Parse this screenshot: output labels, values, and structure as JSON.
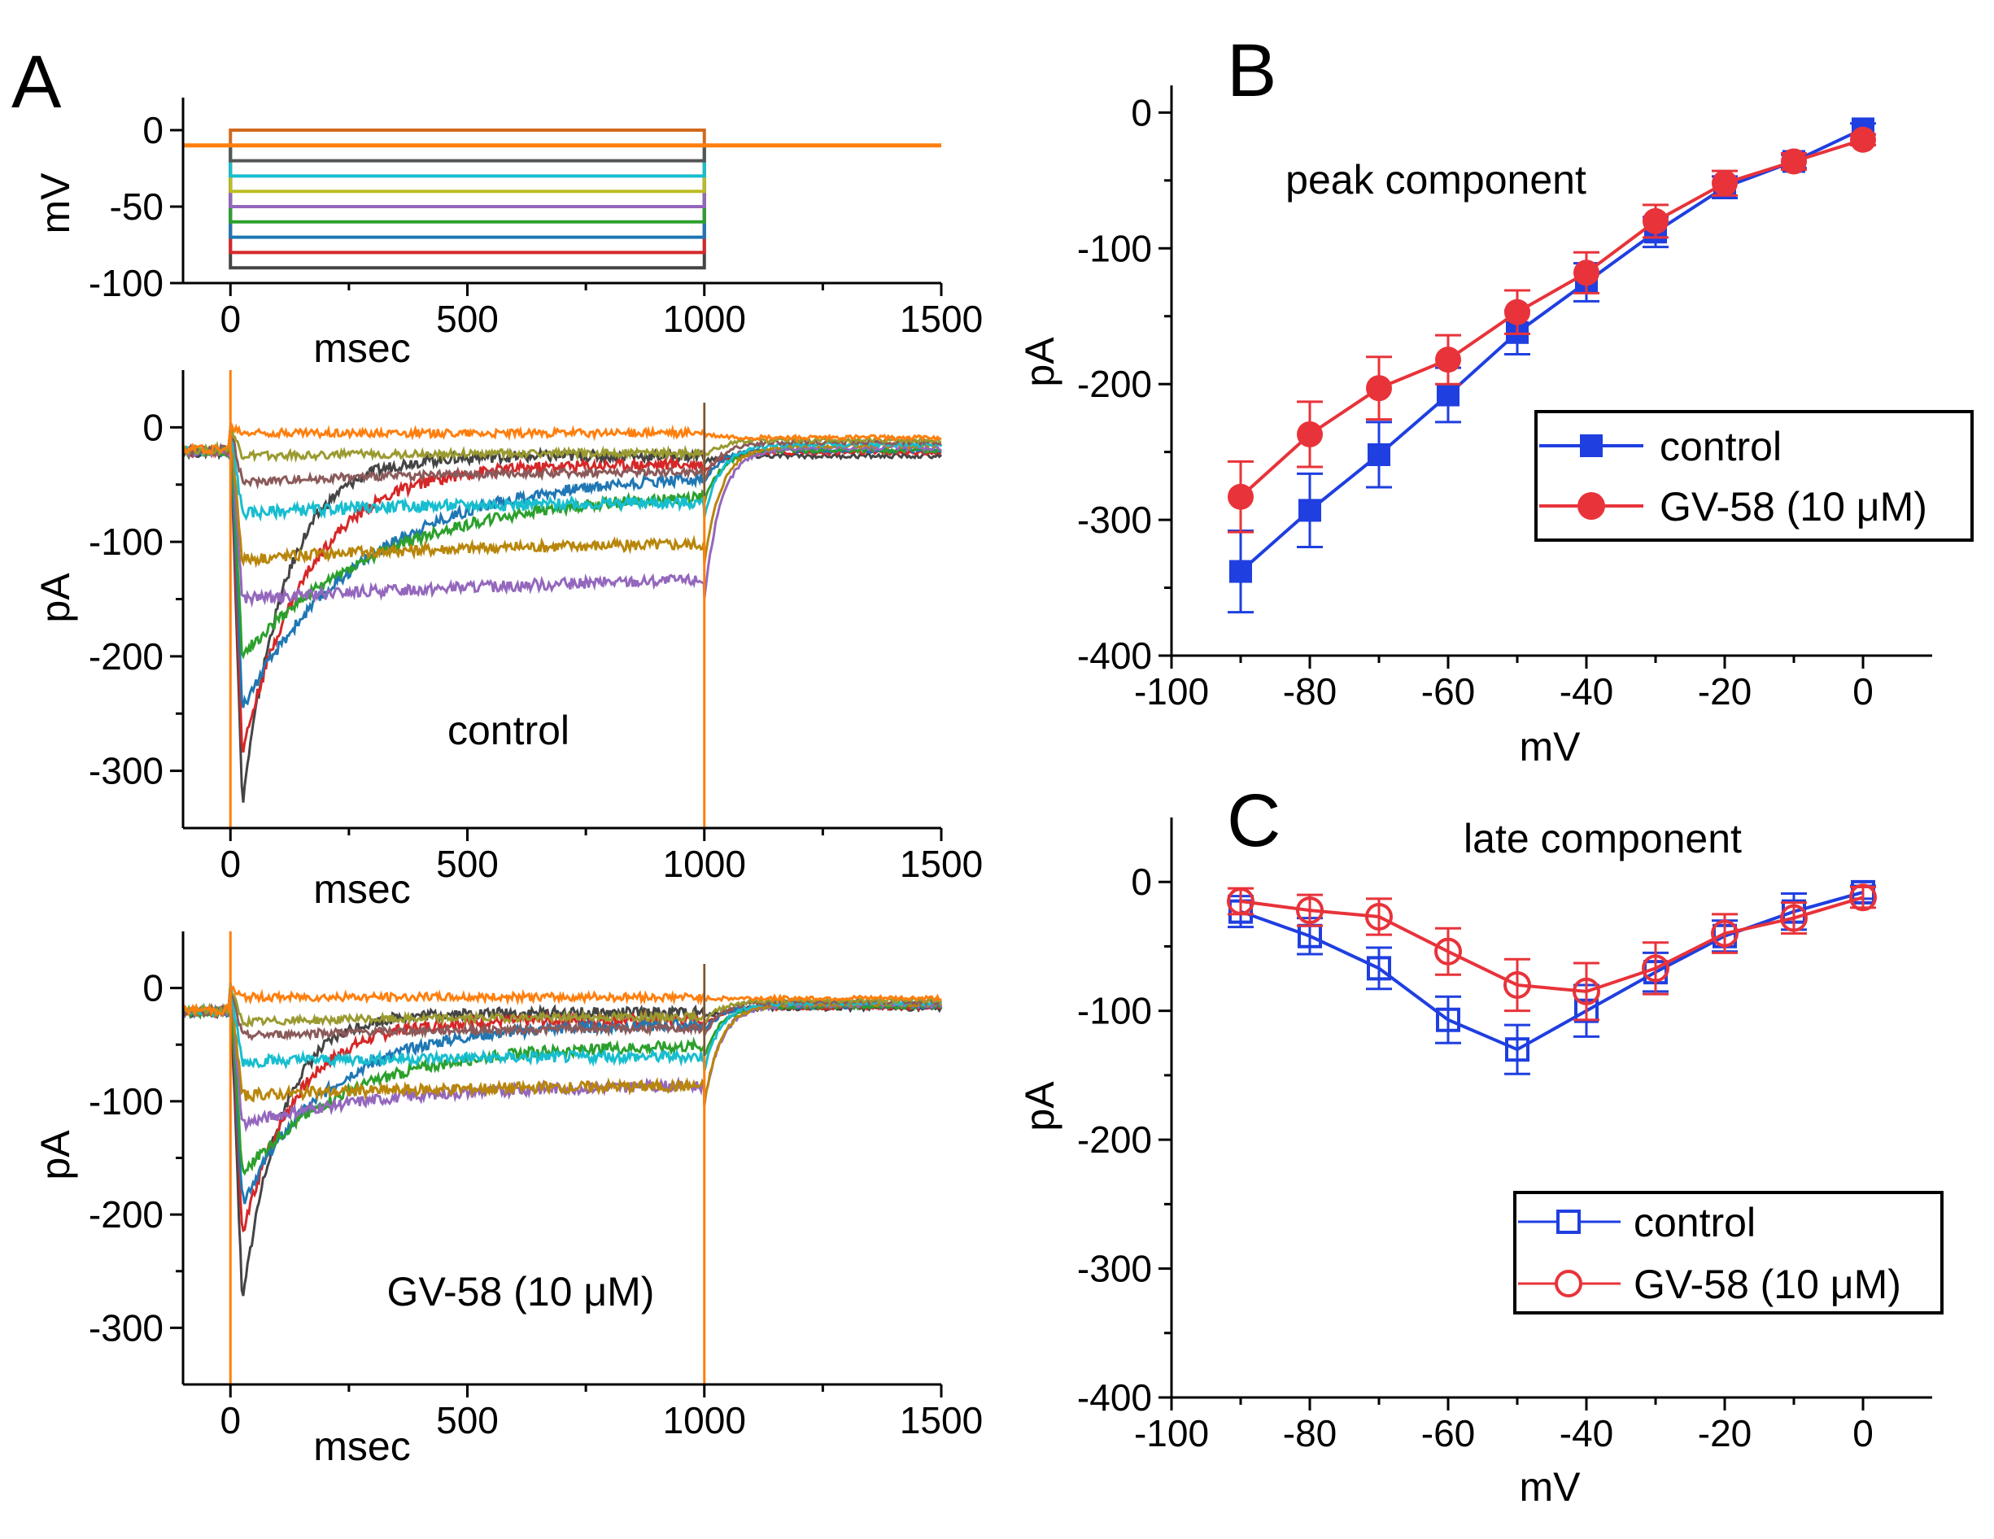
{
  "chart_data": [
    {
      "id": "A1",
      "panel_letter": "A",
      "type": "line",
      "title": "",
      "xlabel": "msec",
      "ylabel": "mV",
      "xlim": [
        -100,
        1500
      ],
      "ylim": [
        -100,
        10
      ],
      "xticks": [
        "0",
        "500",
        "1000",
        "1500"
      ],
      "yticks": [
        "0",
        "-50",
        "-100"
      ],
      "holding_potential": -10,
      "step_start": 0,
      "step_end": 1000,
      "steps": [
        {
          "level": 0,
          "color": "#d2691e"
        },
        {
          "level": -10,
          "color": "#ff7f0e"
        },
        {
          "level": -20,
          "color": "#555555"
        },
        {
          "level": -30,
          "color": "#17becf"
        },
        {
          "level": -40,
          "color": "#bcbd22"
        },
        {
          "level": -50,
          "color": "#9467bd"
        },
        {
          "level": -60,
          "color": "#2ca02c"
        },
        {
          "level": -70,
          "color": "#1f77b4"
        },
        {
          "level": -80,
          "color": "#d62728"
        },
        {
          "level": -90,
          "color": "#444444"
        }
      ]
    },
    {
      "id": "A2",
      "type": "line",
      "title": "",
      "annotation": "control",
      "xlabel": "msec",
      "ylabel": "pA",
      "xlim": [
        -100,
        1500
      ],
      "ylim": [
        -350,
        50
      ],
      "xticks": [
        "0",
        "500",
        "1000",
        "1500"
      ],
      "yticks": [
        "0",
        "-100",
        "-200",
        "-300"
      ],
      "series": [
        {
          "name": "-90 mV",
          "color": "#444444",
          "peak": -330,
          "sustained": -25,
          "tau": 90,
          "tail": -25
        },
        {
          "name": "-80 mV",
          "color": "#d62728",
          "peak": -285,
          "sustained": -32,
          "tau": 140,
          "tail": -22
        },
        {
          "name": "-70 mV",
          "color": "#1f77b4",
          "peak": -245,
          "sustained": -40,
          "tau": 260,
          "tail": -20
        },
        {
          "name": "-60 mV",
          "color": "#2ca02c",
          "peak": -200,
          "sustained": -55,
          "tau": 300,
          "tail": -20
        },
        {
          "name": "-50 mV",
          "color": "#9467bd",
          "peak": -150,
          "sustained": -125,
          "tau": 900,
          "tail": -18
        },
        {
          "name": "-40 mV",
          "color": "#b8860b",
          "peak": -115,
          "sustained": -100,
          "tau": 500,
          "tail": -16
        },
        {
          "name": "-30 mV",
          "color": "#17becf",
          "peak": -75,
          "sustained": -65,
          "tau": 400,
          "tail": -15
        },
        {
          "name": "-20 mV",
          "color": "#8b5a5a",
          "peak": -48,
          "sustained": -38,
          "tau": 400,
          "tail": -13
        },
        {
          "name": "-10 mV",
          "color": "#9a9a30",
          "peak": -25,
          "sustained": -22,
          "tau": 400,
          "tail": -11
        },
        {
          "name": "0 mV",
          "color": "#ff7f0e",
          "peak": -5,
          "sustained": -5,
          "tau": 400,
          "tail": -9
        }
      ]
    },
    {
      "id": "A3",
      "type": "line",
      "title": "",
      "annotation": "GV-58 (10 μM)",
      "xlabel": "msec",
      "ylabel": "pA",
      "xlim": [
        -100,
        1500
      ],
      "ylim": [
        -350,
        50
      ],
      "xticks": [
        "0",
        "500",
        "1000",
        "1500"
      ],
      "yticks": [
        "0",
        "-100",
        "-200",
        "-300"
      ],
      "series": [
        {
          "name": "-90 mV",
          "color": "#444444",
          "peak": -280,
          "sustained": -22,
          "tau": 80,
          "tail": -18
        },
        {
          "name": "-80 mV",
          "color": "#d62728",
          "peak": -220,
          "sustained": -28,
          "tau": 110,
          "tail": -17
        },
        {
          "name": "-70 mV",
          "color": "#1f77b4",
          "peak": -190,
          "sustained": -32,
          "tau": 180,
          "tail": -16
        },
        {
          "name": "-60 mV",
          "color": "#2ca02c",
          "peak": -165,
          "sustained": -50,
          "tau": 220,
          "tail": -16
        },
        {
          "name": "-50 mV",
          "color": "#9467bd",
          "peak": -120,
          "sustained": -85,
          "tau": 300,
          "tail": -15
        },
        {
          "name": "-40 mV",
          "color": "#b8860b",
          "peak": -95,
          "sustained": -85,
          "tau": 500,
          "tail": -14
        },
        {
          "name": "-30 mV",
          "color": "#17becf",
          "peak": -65,
          "sustained": -60,
          "tau": 400,
          "tail": -13
        },
        {
          "name": "-20 mV",
          "color": "#8b5a5a",
          "peak": -42,
          "sustained": -35,
          "tau": 400,
          "tail": -12
        },
        {
          "name": "-10 mV",
          "color": "#9a9a30",
          "peak": -30,
          "sustained": -25,
          "tau": 400,
          "tail": -11
        },
        {
          "name": "0 mV",
          "color": "#ff7f0e",
          "peak": -8,
          "sustained": -8,
          "tau": 400,
          "tail": -9
        }
      ]
    },
    {
      "id": "B",
      "panel_letter": "B",
      "type": "line",
      "title": "peak component",
      "xlabel": "mV",
      "ylabel": "pA",
      "xlim": [
        -100,
        10
      ],
      "ylim": [
        -400,
        20
      ],
      "xticks": [
        "-100",
        "-80",
        "-60",
        "-40",
        "-20",
        "0"
      ],
      "yticks": [
        "0",
        "-100",
        "-200",
        "-300",
        "-400"
      ],
      "x": [
        -90,
        -80,
        -70,
        -60,
        -50,
        -40,
        -30,
        -20,
        -10,
        0
      ],
      "legend_position": "middle-right",
      "series": [
        {
          "name": "control",
          "color": "#1f3fe0",
          "marker": "filled-square",
          "values": [
            -338,
            -293,
            -252,
            -208,
            -162,
            -125,
            -88,
            -55,
            -36,
            -12
          ],
          "errors": [
            30,
            27,
            24,
            20,
            16,
            14,
            11,
            8,
            5,
            4
          ]
        },
        {
          "name": "GV-58 (10 μM)",
          "color": "#e8333a",
          "marker": "filled-circle",
          "values": [
            -283,
            -237,
            -203,
            -182,
            -147,
            -118,
            -80,
            -52,
            -36,
            -20
          ],
          "errors": [
            26,
            24,
            23,
            18,
            16,
            15,
            12,
            9,
            6,
            4
          ]
        }
      ]
    },
    {
      "id": "C",
      "panel_letter": "C",
      "type": "line",
      "title": "late component",
      "xlabel": "mV",
      "ylabel": "pA",
      "xlim": [
        -100,
        10
      ],
      "ylim": [
        -400,
        50
      ],
      "xticks": [
        "-100",
        "-80",
        "-60",
        "-40",
        "-20",
        "0"
      ],
      "yticks": [
        "0",
        "-100",
        "-200",
        "-300",
        "-400"
      ],
      "x": [
        -90,
        -80,
        -70,
        -60,
        -50,
        -40,
        -30,
        -20,
        -10,
        0
      ],
      "legend_position": "bottom-right",
      "series": [
        {
          "name": "control",
          "color": "#1f3fe0",
          "marker": "open-square",
          "values": [
            -23,
            -42,
            -67,
            -107,
            -130,
            -100,
            -70,
            -42,
            -23,
            -8
          ],
          "errors": [
            12,
            14,
            16,
            18,
            19,
            20,
            15,
            12,
            14,
            5
          ]
        },
        {
          "name": "GV-58 (10 μM)",
          "color": "#e8333a",
          "marker": "open-circle",
          "values": [
            -15,
            -22,
            -27,
            -54,
            -80,
            -85,
            -67,
            -40,
            -28,
            -12
          ],
          "errors": [
            10,
            12,
            14,
            18,
            20,
            22,
            20,
            15,
            12,
            8
          ]
        }
      ]
    }
  ]
}
